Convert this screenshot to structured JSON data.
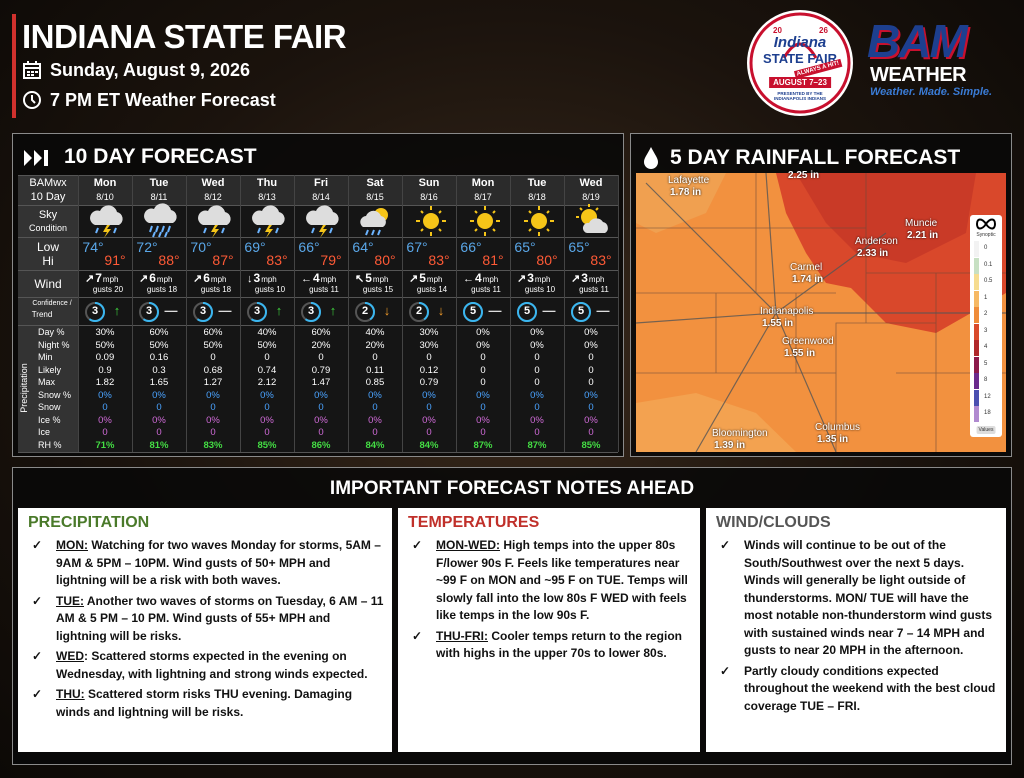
{
  "header": {
    "title": "INDIANA STATE FAIR",
    "date": "Sunday, August 9, 2026",
    "subtitle": "7 PM ET Weather Forecast"
  },
  "fair_logo": {
    "year_left": "20",
    "year_right": "26",
    "name": "Indiana",
    "event": "STATE FAIR",
    "tagline": "ALWAYS A HIT!",
    "dates": "AUGUST 7–23",
    "sponsor": "PRESENTED BY THE INDIANAPOLIS INDIANS"
  },
  "bam_logo": {
    "mark": "BAM",
    "word": "WEATHER",
    "slogan": "Weather. Made. Simple."
  },
  "forecast": {
    "title": "10 DAY FORECAST",
    "corner": [
      "BAMwx",
      "10 Day"
    ],
    "days": [
      {
        "day": "Mon",
        "date": "8/10"
      },
      {
        "day": "Tue",
        "date": "8/11"
      },
      {
        "day": "Wed",
        "date": "8/12"
      },
      {
        "day": "Thu",
        "date": "8/13"
      },
      {
        "day": "Fri",
        "date": "8/14"
      },
      {
        "day": "Sat",
        "date": "8/15"
      },
      {
        "day": "Sun",
        "date": "8/16"
      },
      {
        "day": "Mon",
        "date": "8/17"
      },
      {
        "day": "Tue",
        "date": "8/18"
      },
      {
        "day": "Wed",
        "date": "8/19"
      }
    ],
    "sky_label": [
      "Sky",
      "Condition"
    ],
    "temp_labels": [
      "Low",
      "Hi"
    ],
    "lows": [
      "74°",
      "72°",
      "70°",
      "69°",
      "66°",
      "64°",
      "67°",
      "66°",
      "65°",
      "65°"
    ],
    "highs": [
      "91°",
      "88°",
      "87°",
      "83°",
      "79°",
      "80°",
      "83°",
      "81°",
      "80°",
      "83°"
    ],
    "wind_label": "Wind",
    "wind": [
      {
        "dir": "↗",
        "speed": "7",
        "unit": "mph",
        "gusts": "gusts 20"
      },
      {
        "dir": "↗",
        "speed": "6",
        "unit": "mph",
        "gusts": "gusts 18"
      },
      {
        "dir": "↗",
        "speed": "6",
        "unit": "mph",
        "gusts": "gusts 18"
      },
      {
        "dir": "↓",
        "speed": "3",
        "unit": "mph",
        "gusts": "gusts 10"
      },
      {
        "dir": "←",
        "speed": "4",
        "unit": "mph",
        "gusts": "gusts 11"
      },
      {
        "dir": "↖",
        "speed": "5",
        "unit": "mph",
        "gusts": "gusts 15"
      },
      {
        "dir": "↗",
        "speed": "5",
        "unit": "mph",
        "gusts": "gusts 14"
      },
      {
        "dir": "←",
        "speed": "4",
        "unit": "mph",
        "gusts": "gusts 11"
      },
      {
        "dir": "↗",
        "speed": "3",
        "unit": "mph",
        "gusts": "gusts 10"
      },
      {
        "dir": "↗",
        "speed": "3",
        "unit": "mph",
        "gusts": "gusts 11"
      }
    ],
    "confidence_label": [
      "Confidence /",
      "Trend"
    ],
    "confidence": [
      {
        "level": "3",
        "trend": "↑"
      },
      {
        "level": "3",
        "trend": "—"
      },
      {
        "level": "3",
        "trend": "—"
      },
      {
        "level": "3",
        "trend": "↑"
      },
      {
        "level": "3",
        "trend": "↑"
      },
      {
        "level": "2",
        "trend": "↓"
      },
      {
        "level": "2",
        "trend": "↓"
      },
      {
        "level": "5",
        "trend": "—"
      },
      {
        "level": "5",
        "trend": "—"
      },
      {
        "level": "5",
        "trend": "—"
      }
    ],
    "precip_label": "Precipitation",
    "precip_rows": [
      {
        "label": "Day %",
        "cells": [
          "30%",
          "60%",
          "60%",
          "40%",
          "60%",
          "40%",
          "30%",
          "0%",
          "0%",
          "0%"
        ]
      },
      {
        "label": "Night %",
        "cells": [
          "50%",
          "50%",
          "50%",
          "50%",
          "20%",
          "20%",
          "30%",
          "0%",
          "0%",
          "0%"
        ]
      },
      {
        "label": "Min",
        "cells": [
          "0.09",
          "0.16",
          "0",
          "0",
          "0",
          "0",
          "0",
          "0",
          "0",
          "0"
        ]
      },
      {
        "label": "Likely",
        "cells": [
          "0.9",
          "0.3",
          "0.68",
          "0.74",
          "0.79",
          "0.11",
          "0.12",
          "0",
          "0",
          "0"
        ]
      },
      {
        "label": "Max",
        "cells": [
          "1.82",
          "1.65",
          "1.27",
          "2.12",
          "1.47",
          "0.85",
          "0.79",
          "0",
          "0",
          "0"
        ]
      },
      {
        "label": "Snow %",
        "cells": [
          "0%",
          "0%",
          "0%",
          "0%",
          "0%",
          "0%",
          "0%",
          "0%",
          "0%",
          "0%"
        ]
      },
      {
        "label": "Snow",
        "cells": [
          "0",
          "0",
          "0",
          "0",
          "0",
          "0",
          "0",
          "0",
          "0",
          "0"
        ]
      },
      {
        "label": "Ice %",
        "cells": [
          "0%",
          "0%",
          "0%",
          "0%",
          "0%",
          "0%",
          "0%",
          "0%",
          "0%",
          "0%"
        ]
      },
      {
        "label": "Ice",
        "cells": [
          "0",
          "0",
          "0",
          "0",
          "0",
          "0",
          "0",
          "0",
          "0",
          "0"
        ]
      },
      {
        "label": "RH %",
        "cells": [
          "71%",
          "81%",
          "83%",
          "85%",
          "86%",
          "84%",
          "84%",
          "87%",
          "87%",
          "85%"
        ]
      }
    ]
  },
  "rainfall": {
    "title": "5 DAY RAINFALL FORECAST",
    "cities": [
      {
        "name": "Lafayette",
        "amount": "1.78 in"
      },
      {
        "amount": "2.25 in"
      },
      {
        "name": "Muncie",
        "amount": "2.21 in"
      },
      {
        "name": "Anderson",
        "amount": "2.33 in"
      },
      {
        "name": "Carmel",
        "amount": "1.74 in"
      },
      {
        "name": "Indianapolis",
        "amount": "1.55 in"
      },
      {
        "name": "Greenwood",
        "amount": "1.55 in"
      },
      {
        "name": "Bloomington",
        "amount": "1.39 in"
      },
      {
        "name": "Columbus",
        "amount": "1.35 in"
      }
    ],
    "legend": {
      "title": "Synoptic",
      "ticks": [
        "0",
        "0.1",
        "0.5",
        "1",
        "2",
        "3",
        "4",
        "5",
        "8",
        "12",
        "18"
      ],
      "button": "Values"
    }
  },
  "notes": {
    "title": "IMPORTANT FORECAST NOTES AHEAD",
    "columns": [
      {
        "heading": "PRECIPITATION",
        "items": [
          {
            "lead": "MON:",
            "text": " Watching for two waves Monday for storms, 5AM – 9AM & 5PM – 10PM. Wind gusts of 50+ MPH and lightning will be a risk with both waves."
          },
          {
            "lead": "TUE:",
            "text": " Another two waves of storms on Tuesday, 6 AM – 11 AM & 5 PM – 10 PM. Wind gusts of 55+ MPH and lightning will be risks."
          },
          {
            "lead": "WED",
            "text": ": Scattered storms expected in the evening on Wednesday, with lightning and strong winds expected."
          },
          {
            "lead": "THU:",
            "text": " Scattered storm risks THU evening. Damaging winds and lightning will be risks."
          }
        ]
      },
      {
        "heading": "TEMPERATURES",
        "items": [
          {
            "lead": "MON-WED:",
            "text": " High temps into the upper 80s F/lower 90s F. Feels like temperatures near ~99 F on MON and ~95 F on TUE. Temps will slowly fall into the low 80s F WED with feels like temps in the low 90s F."
          },
          {
            "lead": "THU-FRI:",
            "text": " Cooler temps return to the region with highs in the upper 70s to lower 80s."
          }
        ]
      },
      {
        "heading": "WIND/CLOUDS",
        "items": [
          {
            "text": "Winds will continue to be out of the South/Southwest over the next 5 days. Winds will generally be light outside of thunderstorms.  MON/ TUE will have the most notable non-thunderstorm wind gusts with sustained winds near 7 – 14 MPH and gusts to near 20 MPH in the afternoon."
          },
          {
            "text": "Partly cloudy conditions expected throughout the weekend with the best cloud coverage TUE – FRI."
          }
        ]
      }
    ]
  }
}
